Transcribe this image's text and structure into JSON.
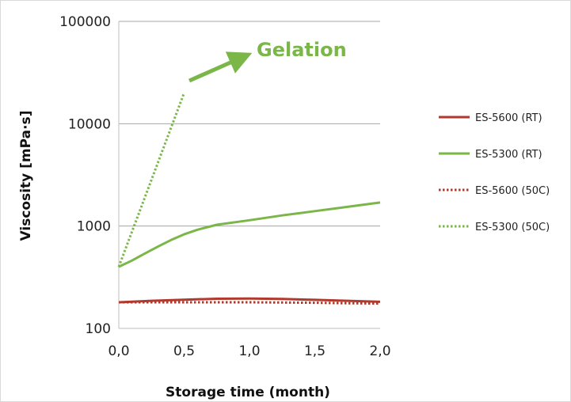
{
  "colors": {
    "red": "#b03a2e",
    "green": "#7ab648",
    "grid": "#a6a6a6",
    "axis": "#bfbfbf"
  },
  "chart_data": {
    "type": "line",
    "title": "",
    "xlabel": "Storage time (month)",
    "ylabel": "Viscosity [mPa·s]",
    "xlim": [
      0,
      2
    ],
    "ylim": [
      100,
      100000
    ],
    "yscale": "log",
    "xticks": [
      "0,0",
      "0,5",
      "1,0",
      "1,5",
      "2,0"
    ],
    "yticks": [
      "100",
      "1000",
      "10000",
      "100000"
    ],
    "grid": "horizontal",
    "legend_position": "right",
    "series": [
      {
        "name": "ES-5600 (RT)",
        "color": "#b03a2e",
        "style": "solid",
        "x": [
          0,
          0.25,
          0.5,
          0.75,
          1.0,
          1.25,
          1.5,
          1.75,
          2.0
        ],
        "y": [
          180,
          186,
          191,
          195,
          196,
          194,
          190,
          186,
          182
        ]
      },
      {
        "name": "ES-5300 (RT)",
        "color": "#7ab648",
        "style": "solid",
        "x": [
          0,
          0.1,
          0.2,
          0.3,
          0.4,
          0.5,
          0.6,
          0.75,
          1.0,
          1.25,
          1.5,
          1.75,
          2.0
        ],
        "y": [
          400,
          460,
          540,
          630,
          730,
          830,
          920,
          1030,
          1140,
          1270,
          1400,
          1540,
          1700
        ]
      },
      {
        "name": "ES-5600 (50C)",
        "color": "#b03a2e",
        "style": "dotted",
        "x": [
          0,
          0.25,
          0.5,
          0.75,
          1.0,
          1.25,
          1.5,
          1.75,
          2.0
        ],
        "y": [
          180,
          180,
          180,
          180,
          180,
          179,
          178,
          176,
          175
        ]
      },
      {
        "name": "ES-5300 (50C)",
        "color": "#7ab648",
        "style": "dotted",
        "x": [
          0,
          0.5
        ],
        "y": [
          400,
          20000
        ]
      }
    ],
    "annotations": [
      {
        "text": "Gelation",
        "color": "#7ab648",
        "arrow": true
      }
    ]
  }
}
